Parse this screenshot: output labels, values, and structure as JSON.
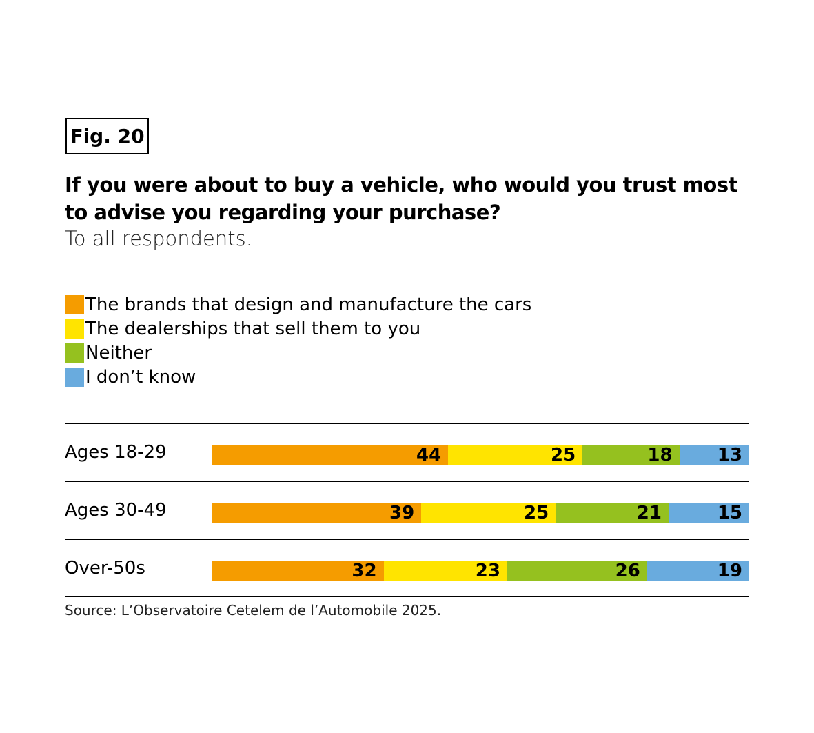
{
  "fig_label": "Fig. 20",
  "chart_data": {
    "type": "bar",
    "stacked": true,
    "orientation": "horizontal",
    "title": "If you were about to buy a vehicle, who would you trust most to advise you regarding your purchase?",
    "subtitle": "To all respondents.",
    "categories": [
      "Ages 18-29",
      "Ages 30-49",
      "Over-50s"
    ],
    "series": [
      {
        "name": "The brands that design and manufacture the cars",
        "color": "#F59C00",
        "values": [
          44,
          39,
          32
        ]
      },
      {
        "name": "The dealerships that sell them to you",
        "color": "#FFE400",
        "values": [
          25,
          25,
          23
        ]
      },
      {
        "name": "Neither",
        "color": "#95C11F",
        "values": [
          18,
          21,
          26
        ]
      },
      {
        "name": "I don’t know",
        "color": "#69ABDE",
        "values": [
          13,
          15,
          19
        ]
      }
    ],
    "xlim": [
      0,
      100
    ],
    "legend_position": "top-left",
    "source": "Source: L’Observatoire Cetelem de l’Automobile 2025."
  }
}
